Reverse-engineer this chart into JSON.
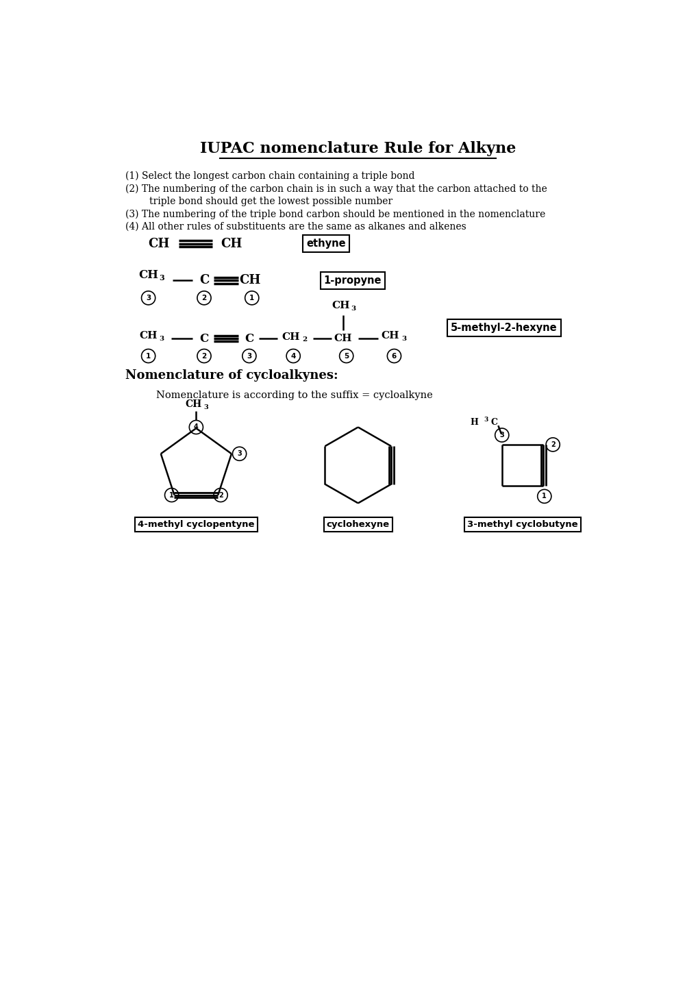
{
  "title": "IUPAC nomenclature Rule for Alkyne",
  "bg_color": "#ffffff",
  "text_color": "#000000",
  "rule1": "(1) Select the longest carbon chain containing a triple bond",
  "rule2": "(2) The numbering of the carbon chain is in such a way that the carbon attached to the",
  "rule2b": "        triple bond should get the lowest possible number",
  "rule3": "(3) The numbering of the triple bond carbon should be mentioned in the nomenclature",
  "rule4": "(4) All other rules of substituents are the same as alkanes and alkenes",
  "cyclo_heading": "Nomenclature of cycloalkynes:",
  "cyclo_subtext": "Nomenclature is according to the suffix = cycloalkyne",
  "label_ethyne": "ethyne",
  "label_1propyne": "1-propyne",
  "label_5methyl2hexyne": "5-methyl-2-hexyne",
  "label_4methylcyclopentyne": "4-methyl cyclopentyne",
  "label_cyclohexyne": "cyclohexyne",
  "label_3methylcyclobutyne": "3-methyl cyclobutyne"
}
